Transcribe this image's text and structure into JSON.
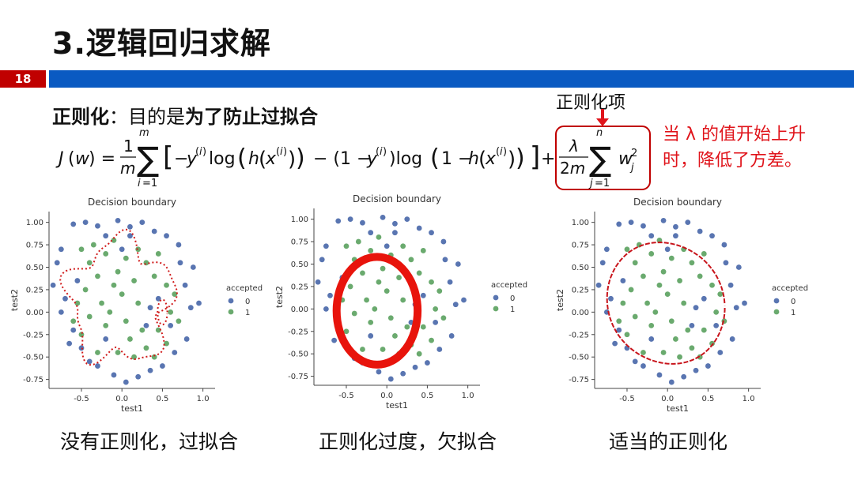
{
  "slide": {
    "title": "3.逻辑回归求解",
    "page_number": "18",
    "reg_label": "正则化",
    "reg_colon": "：目的是",
    "reg_purpose": "为了防止过拟合",
    "reg_term_label": "正则化项",
    "note_line1": "当 λ 的值开始上升",
    "note_line2": "时，降低了方差。",
    "colors": {
      "accent_red": "#c00000",
      "bar_blue": "#0a5ac2",
      "note_red": "#e0141b"
    }
  },
  "captions": [
    "没有正则化，过拟合",
    "正则化过度，欠拟合",
    "适当的正则化"
  ],
  "chart_data": [
    {
      "type": "scatter",
      "title": "Decision boundary",
      "xlabel": "test1",
      "ylabel": "test2",
      "xlim": [
        -0.9,
        1.15
      ],
      "ylim": [
        -0.85,
        1.12
      ],
      "xticks": [
        "-0.5",
        "0.0",
        "0.5",
        "1.0"
      ],
      "yticks": [
        "1.00",
        "0.75",
        "0.50",
        "0.25",
        "0.00",
        "-0.25",
        "-0.50",
        "-0.75"
      ],
      "legend": {
        "title": "accepted",
        "entries": [
          "0",
          "1"
        ],
        "placement": "right"
      },
      "boundary": "overfit"
    },
    {
      "type": "scatter",
      "title": "Decision boundary",
      "xlabel": "test1",
      "ylabel": "test2",
      "xlim": [
        -0.9,
        1.15
      ],
      "ylim": [
        -0.85,
        1.12
      ],
      "xticks": [
        "-0.5",
        "0.0",
        "0.5",
        "1.0"
      ],
      "yticks": [
        "1.00",
        "0.75",
        "0.50",
        "0.25",
        "0.00",
        "-0.25",
        "-0.50",
        "-0.75"
      ],
      "legend": {
        "title": "accepted",
        "entries": [
          "0",
          "1"
        ],
        "placement": "right"
      },
      "boundary": "underfit"
    },
    {
      "type": "scatter",
      "title": "Decision boundary",
      "xlabel": "test1",
      "ylabel": "test2",
      "xlim": [
        -0.9,
        1.15
      ],
      "ylim": [
        -0.85,
        1.12
      ],
      "xticks": [
        "-0.5",
        "0.0",
        "0.5",
        "1.0"
      ],
      "yticks": [
        "1.00",
        "0.75",
        "0.50",
        "0.25",
        "0.00",
        "-0.25",
        "-0.50",
        "-0.75"
      ],
      "legend": {
        "title": "accepted",
        "entries": [
          "0",
          "1"
        ],
        "placement": "right"
      },
      "boundary": "proper"
    }
  ],
  "points": {
    "rejected": [
      [
        -0.6,
        0.98
      ],
      [
        -0.45,
        1.0
      ],
      [
        -0.3,
        0.96
      ],
      [
        -0.05,
        1.02
      ],
      [
        0.1,
        0.95
      ],
      [
        0.25,
        1.0
      ],
      [
        0.4,
        0.9
      ],
      [
        0.55,
        0.85
      ],
      [
        0.7,
        0.75
      ],
      [
        -0.75,
        0.7
      ],
      [
        -0.8,
        0.55
      ],
      [
        -0.85,
        0.3
      ],
      [
        -0.7,
        0.15
      ],
      [
        -0.75,
        0.0
      ],
      [
        -0.6,
        -0.2
      ],
      [
        -0.65,
        -0.35
      ],
      [
        -0.5,
        -0.4
      ],
      [
        -0.4,
        -0.55
      ],
      [
        -0.3,
        -0.6
      ],
      [
        -0.1,
        -0.7
      ],
      [
        0.05,
        -0.78
      ],
      [
        0.2,
        -0.72
      ],
      [
        0.35,
        -0.65
      ],
      [
        0.5,
        -0.6
      ],
      [
        0.65,
        -0.45
      ],
      [
        0.8,
        -0.3
      ],
      [
        0.85,
        0.05
      ],
      [
        0.95,
        0.1
      ],
      [
        0.78,
        0.3
      ],
      [
        0.88,
        0.5
      ],
      [
        0.72,
        0.55
      ],
      [
        0.35,
        0.05
      ],
      [
        0.45,
        0.15
      ],
      [
        0.1,
        0.85
      ],
      [
        -0.2,
        0.85
      ],
      [
        0.3,
        -0.15
      ],
      [
        -0.2,
        -0.3
      ],
      [
        0.6,
        -0.15
      ],
      [
        -0.55,
        0.35
      ],
      [
        0.0,
        0.7
      ]
    ],
    "accepted": [
      [
        -0.5,
        0.7
      ],
      [
        -0.4,
        0.55
      ],
      [
        -0.35,
        0.75
      ],
      [
        -0.2,
        0.65
      ],
      [
        -0.1,
        0.8
      ],
      [
        0.05,
        0.6
      ],
      [
        0.2,
        0.7
      ],
      [
        0.3,
        0.55
      ],
      [
        0.45,
        0.65
      ],
      [
        -0.55,
        0.1
      ],
      [
        -0.45,
        0.25
      ],
      [
        -0.4,
        -0.05
      ],
      [
        -0.3,
        0.4
      ],
      [
        -0.25,
        0.1
      ],
      [
        -0.1,
        0.3
      ],
      [
        -0.15,
        0.0
      ],
      [
        0.0,
        0.2
      ],
      [
        0.05,
        -0.1
      ],
      [
        0.15,
        0.35
      ],
      [
        0.2,
        0.1
      ],
      [
        0.1,
        -0.3
      ],
      [
        -0.05,
        -0.45
      ],
      [
        0.15,
        -0.5
      ],
      [
        0.3,
        -0.4
      ],
      [
        0.4,
        -0.5
      ],
      [
        0.55,
        -0.35
      ],
      [
        0.6,
        0.0
      ],
      [
        0.55,
        0.3
      ],
      [
        0.65,
        0.2
      ],
      [
        -0.6,
        -0.1
      ],
      [
        -0.5,
        -0.25
      ],
      [
        -0.3,
        -0.45
      ],
      [
        0.25,
        -0.2
      ],
      [
        0.45,
        -0.2
      ],
      [
        0.4,
        0.4
      ],
      [
        -0.05,
        0.45
      ],
      [
        0.7,
        -0.1
      ],
      [
        -0.2,
        -0.15
      ]
    ]
  }
}
